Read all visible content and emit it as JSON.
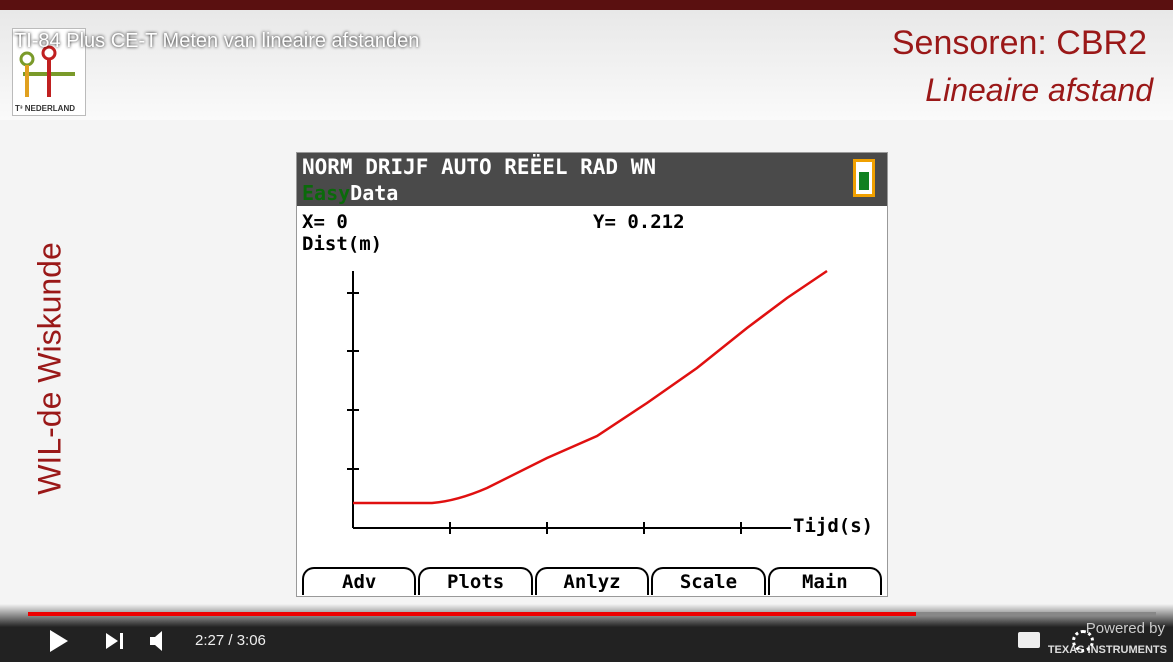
{
  "video": {
    "title": "TI-84 Plus CE-T Meten van lineaire afstanden",
    "time": "2:27 / 3:06",
    "powered_by": "Powered by",
    "brand": "TEXAS INSTRUMENTS"
  },
  "slide": {
    "logo_text": "T³ NEDERLAND",
    "heading": "Sensoren: CBR2",
    "subheading": "Lineaire afstand",
    "side_text": "WIL-de Wiskunde"
  },
  "calculator": {
    "status": "NORM DRIJF AUTO REËEL RAD WN",
    "app_easy": "Easy",
    "app_data": "Data",
    "x_readout": "X= 0",
    "y_readout": "Y= 0.212",
    "y_axis_label": "Dist(m)",
    "x_axis_label": "Tijd(s)",
    "tabs": [
      "Adv",
      "Plots",
      "Anlyz",
      "Scale",
      "Main"
    ]
  }
}
